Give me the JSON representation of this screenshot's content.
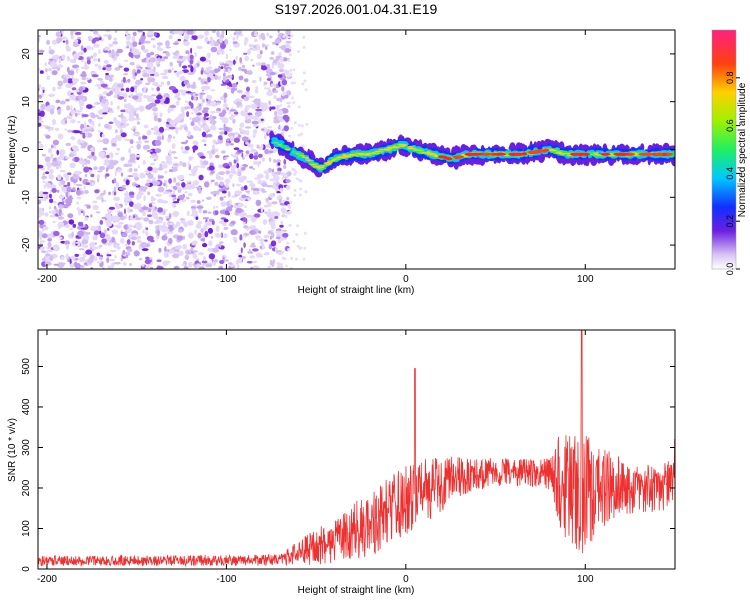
{
  "title": "S197.2026.001.04.31.E19",
  "colors": {
    "snr_line": "#ee3030",
    "axis": "#000000"
  },
  "chart_data": [
    {
      "type": "heatmap",
      "name": "spectrogram",
      "xlabel": "Height of straight line (km)",
      "ylabel": "Frequency (Hz)",
      "xlim": [
        -205,
        150
      ],
      "ylim": [
        -25,
        25
      ],
      "x_ticks": [
        -200,
        -100,
        0,
        100
      ],
      "y_ticks": [
        20,
        10,
        0,
        -10,
        -20
      ],
      "noise_region_x": [
        -205,
        -65
      ],
      "signal_track": {
        "x": [
          -75,
          -65,
          -55,
          -48,
          -40,
          -30,
          -20,
          -10,
          -2,
          5,
          15,
          25,
          35,
          45,
          55,
          65,
          80,
          90,
          100,
          110,
          120,
          130,
          140,
          150
        ],
        "freq": [
          2,
          0,
          -2,
          -4,
          -2,
          -1,
          -1,
          0,
          1,
          0,
          -1,
          -2,
          -1,
          -1,
          -1,
          -1,
          0,
          -1,
          -1,
          -1,
          -1,
          -1,
          -1,
          -1
        ]
      },
      "colorbar": {
        "label": "Normalized spectral amplitude",
        "range": [
          0,
          1
        ],
        "ticks": [
          "0.0",
          "0.2",
          "0.4",
          "0.6",
          "0.8"
        ]
      }
    },
    {
      "type": "line",
      "name": "snr",
      "xlabel": "Height of straight line (km)",
      "ylabel": "SNR (10 * v/v)",
      "xlim": [
        -205,
        150
      ],
      "ylim": [
        0,
        590
      ],
      "x_ticks": [
        -200,
        -100,
        0,
        100
      ],
      "y_ticks": [
        0,
        100,
        200,
        300,
        400,
        500
      ],
      "envelope": {
        "x": [
          -205,
          -70,
          -60,
          -50,
          -40,
          -30,
          -20,
          -10,
          0,
          10,
          20,
          30,
          40,
          50,
          60,
          70,
          80,
          85,
          90,
          95,
          100,
          105,
          110,
          120,
          130,
          140,
          150
        ],
        "mean": [
          20,
          22,
          40,
          55,
          70,
          90,
          110,
          140,
          170,
          190,
          210,
          225,
          235,
          240,
          240,
          238,
          235,
          220,
          205,
          200,
          180,
          190,
          200,
          205,
          195,
          200,
          210
        ],
        "spread": [
          12,
          14,
          30,
          45,
          55,
          70,
          80,
          85,
          85,
          80,
          70,
          55,
          40,
          35,
          35,
          35,
          40,
          110,
          140,
          160,
          170,
          130,
          100,
          70,
          60,
          60,
          60
        ]
      },
      "peaks": {
        "x": [
          5,
          98,
          150
        ],
        "y": [
          495,
          590,
          320
        ]
      }
    }
  ]
}
